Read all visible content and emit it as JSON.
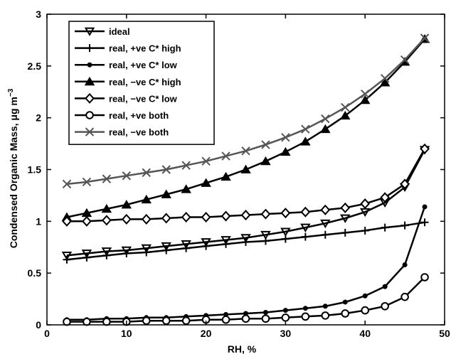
{
  "chart_data": {
    "type": "line",
    "title": "",
    "xlabel": "RH, %",
    "ylabel": "Condensed Organic Mass, μg m",
    "ylabel_superscript": "−3",
    "xlim": [
      0,
      50
    ],
    "ylim": [
      0,
      3
    ],
    "xticks": [
      0,
      10,
      20,
      30,
      40,
      50
    ],
    "yticks": [
      0,
      0.5,
      1,
      1.5,
      2,
      2.5,
      3
    ],
    "xtick_labels": [
      "0",
      "10",
      "20",
      "30",
      "40",
      "50"
    ],
    "ytick_labels": [
      "0",
      "0.5",
      "1",
      "1.5",
      "2",
      "2.5",
      "3"
    ],
    "grid": false,
    "legend_position": "top-left",
    "x": [
      2.5,
      5,
      7.5,
      10,
      12.5,
      15,
      17.5,
      20,
      22.5,
      25,
      27.5,
      30,
      32.5,
      35,
      37.5,
      40,
      42.5,
      45,
      47.5
    ],
    "series": [
      {
        "name": "ideal",
        "color": "#000000",
        "marker": "triangle-down",
        "values": [
          0.67,
          0.69,
          0.71,
          0.72,
          0.74,
          0.76,
          0.78,
          0.8,
          0.82,
          0.84,
          0.87,
          0.9,
          0.94,
          0.98,
          1.03,
          1.09,
          1.18,
          1.33,
          1.69
        ]
      },
      {
        "name": "real, +ve C* high",
        "color": "#000000",
        "marker": "plus",
        "values": [
          0.63,
          0.65,
          0.67,
          0.69,
          0.7,
          0.72,
          0.74,
          0.76,
          0.78,
          0.8,
          0.81,
          0.83,
          0.85,
          0.87,
          0.89,
          0.91,
          0.94,
          0.96,
          0.99
        ]
      },
      {
        "name": "real, +ve C* low",
        "color": "#000000",
        "marker": "dot",
        "values": [
          0.05,
          0.05,
          0.06,
          0.06,
          0.07,
          0.07,
          0.08,
          0.09,
          0.1,
          0.11,
          0.12,
          0.14,
          0.16,
          0.18,
          0.22,
          0.28,
          0.37,
          0.58,
          1.14
        ]
      },
      {
        "name": "real, −ve C* high",
        "color": "#000000",
        "marker": "triangle-up",
        "values": [
          1.04,
          1.08,
          1.12,
          1.16,
          1.21,
          1.26,
          1.31,
          1.37,
          1.43,
          1.5,
          1.58,
          1.67,
          1.77,
          1.89,
          2.02,
          2.17,
          2.34,
          2.54,
          2.76
        ]
      },
      {
        "name": "real, −ve C* low",
        "color": "#000000",
        "marker": "diamond",
        "values": [
          1.0,
          1.0,
          1.01,
          1.02,
          1.02,
          1.03,
          1.04,
          1.04,
          1.05,
          1.06,
          1.07,
          1.08,
          1.09,
          1.11,
          1.13,
          1.17,
          1.23,
          1.36,
          1.7
        ]
      },
      {
        "name": "real, +ve both",
        "color": "#000000",
        "marker": "circle",
        "values": [
          0.03,
          0.03,
          0.03,
          0.03,
          0.04,
          0.04,
          0.04,
          0.05,
          0.05,
          0.06,
          0.06,
          0.07,
          0.08,
          0.09,
          0.11,
          0.14,
          0.18,
          0.27,
          0.46
        ]
      },
      {
        "name": "real, −ve both",
        "color": "#555555",
        "marker": "x",
        "values": [
          1.36,
          1.38,
          1.41,
          1.44,
          1.47,
          1.5,
          1.54,
          1.58,
          1.63,
          1.68,
          1.74,
          1.81,
          1.89,
          1.99,
          2.1,
          2.23,
          2.38,
          2.56,
          2.77
        ]
      }
    ]
  }
}
